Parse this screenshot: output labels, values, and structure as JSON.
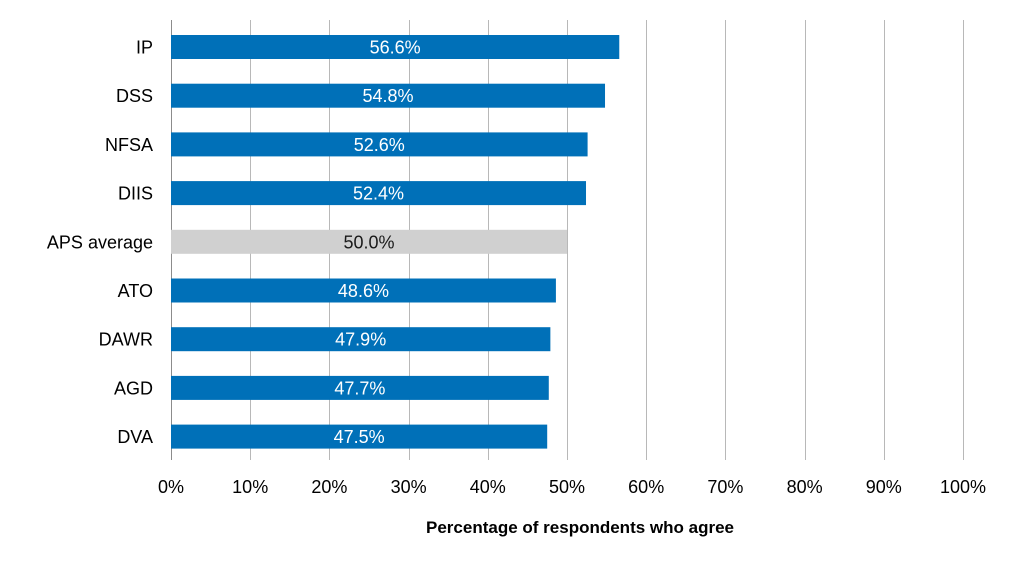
{
  "chart_data": {
    "type": "bar",
    "orientation": "horizontal",
    "categories": [
      "IP",
      "DSS",
      "NFSA",
      "DIIS",
      "APS average",
      "ATO",
      "DAWR",
      "AGD",
      "DVA"
    ],
    "values": [
      56.6,
      54.8,
      52.6,
      52.4,
      50.0,
      48.6,
      47.9,
      47.7,
      47.5
    ],
    "data_labels": [
      "56.6%",
      "54.8%",
      "52.6%",
      "52.4%",
      "50.0%",
      "48.6%",
      "47.9%",
      "47.7%",
      "47.5%"
    ],
    "highlight_category": "APS average",
    "xlabel": "Percentage of respondents who agree",
    "ylabel": "",
    "xlim": [
      0,
      100
    ],
    "xticks": [
      "0%",
      "10%",
      "20%",
      "30%",
      "40%",
      "50%",
      "60%",
      "70%",
      "80%",
      "90%",
      "100%"
    ],
    "grid": "vertical",
    "legend": "none",
    "colors": {
      "bar": "#0070b8",
      "highlight_bar": "#d0d0d0",
      "label_on_bar": "#ffffff",
      "label_on_highlight": "#1a1a1a",
      "grid": "#b8b8b8",
      "axis": "#8c8c8c"
    }
  }
}
